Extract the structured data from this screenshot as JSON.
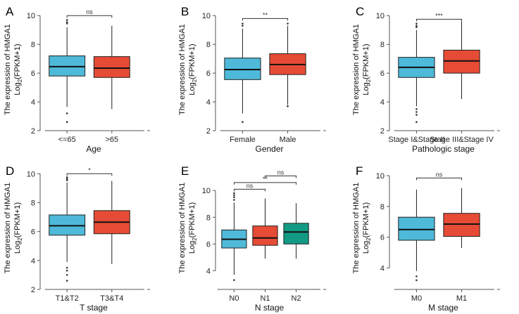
{
  "ylabel_line1": "The expression of HMGA1",
  "ylabel_line2_main": "Log",
  "ylabel_line2_sub": "2",
  "ylabel_line2_rest": "(FPKM+1)",
  "colors": {
    "blue": "#4EB9D8",
    "red": "#E64B35",
    "teal": "#139A84"
  },
  "chart_data": [
    {
      "type": "box",
      "panel_label": "A",
      "xlabel": "Age",
      "ylim": [
        2,
        10.5
      ],
      "yticks": [
        2,
        4,
        6,
        8,
        10
      ],
      "categories": [
        "<=65",
        ">65"
      ],
      "boxes": [
        {
          "color": "blue",
          "q1": 5.8,
          "median": 6.45,
          "q3": 7.2,
          "whisker_low": 3.65,
          "whisker_high": 9.2,
          "outliers": [
            9.45,
            9.55,
            9.7,
            3.2,
            2.6
          ]
        },
        {
          "color": "red",
          "q1": 5.7,
          "median": 6.35,
          "q3": 7.15,
          "whisker_low": 3.5,
          "whisker_high": 9.3,
          "outliers": []
        }
      ],
      "comparisons": [
        {
          "from": 0,
          "to": 1,
          "y": 10.0,
          "label": "ns"
        }
      ]
    },
    {
      "type": "box",
      "panel_label": "B",
      "xlabel": "Gender",
      "ylim": [
        2,
        10.5
      ],
      "yticks": [
        2,
        4,
        6,
        8,
        10
      ],
      "categories": [
        "Female",
        "Male"
      ],
      "boxes": [
        {
          "color": "blue",
          "q1": 5.55,
          "median": 6.25,
          "q3": 7.05,
          "whisker_low": 3.2,
          "whisker_high": 9.1,
          "outliers": [
            9.3,
            9.45,
            2.6
          ]
        },
        {
          "color": "red",
          "q1": 5.9,
          "median": 6.6,
          "q3": 7.35,
          "whisker_low": 3.8,
          "whisker_high": 9.3,
          "outliers": [
            9.45,
            3.7
          ]
        }
      ],
      "comparisons": [
        {
          "from": 0,
          "to": 1,
          "y": 9.8,
          "label": "**"
        }
      ]
    },
    {
      "type": "box",
      "panel_label": "C",
      "xlabel": "Pathologic stage",
      "ylim": [
        2,
        10.5
      ],
      "yticks": [
        2,
        4,
        6,
        8,
        10
      ],
      "categories": [
        "Stage I&Stage II",
        "Stage III&Stage IV"
      ],
      "boxes": [
        {
          "color": "blue",
          "q1": 5.7,
          "median": 6.4,
          "q3": 7.1,
          "whisker_low": 3.7,
          "whisker_high": 9.0,
          "outliers": [
            9.2,
            9.3,
            9.45,
            3.5,
            3.3,
            3.1,
            2.6
          ]
        },
        {
          "color": "red",
          "q1": 6.0,
          "median": 6.85,
          "q3": 7.6,
          "whisker_low": 4.2,
          "whisker_high": 9.6,
          "outliers": []
        }
      ],
      "comparisons": [
        {
          "from": 0,
          "to": 1,
          "y": 9.75,
          "label": "***"
        }
      ]
    },
    {
      "type": "box",
      "panel_label": "D",
      "xlabel": "T stage",
      "ylim": [
        2,
        10.5
      ],
      "yticks": [
        2,
        4,
        6,
        8,
        10
      ],
      "categories": [
        "T1&T2",
        "T3&T4"
      ],
      "boxes": [
        {
          "color": "blue",
          "q1": 5.75,
          "median": 6.4,
          "q3": 7.15,
          "whisker_low": 3.9,
          "whisker_high": 9.4,
          "outliers": [
            9.55,
            9.65,
            9.75,
            3.5,
            3.3,
            3.0,
            2.6
          ]
        },
        {
          "color": "red",
          "q1": 5.85,
          "median": 6.65,
          "q3": 7.45,
          "whisker_low": 3.75,
          "whisker_high": 9.5,
          "outliers": []
        }
      ],
      "comparisons": [
        {
          "from": 0,
          "to": 1,
          "y": 10.0,
          "label": "*"
        }
      ]
    },
    {
      "type": "box",
      "panel_label": "E",
      "xlabel": "N stage",
      "ylim": [
        2.6,
        11.8
      ],
      "yticks": [
        4,
        6,
        8,
        10
      ],
      "categories": [
        "N0",
        "N1",
        "N2"
      ],
      "boxes": [
        {
          "color": "blue",
          "q1": 5.7,
          "median": 6.35,
          "q3": 7.05,
          "whisker_low": 3.7,
          "whisker_high": 9.1,
          "outliers": [
            9.3,
            9.5,
            9.65,
            9.8,
            3.3
          ]
        },
        {
          "color": "red",
          "q1": 5.9,
          "median": 6.45,
          "q3": 7.35,
          "whisker_low": 4.9,
          "whisker_high": 9.4,
          "outliers": []
        },
        {
          "color": "teal",
          "q1": 6.0,
          "median": 6.9,
          "q3": 7.55,
          "whisker_low": 4.9,
          "whisker_high": 9.05,
          "outliers": []
        }
      ],
      "comparisons": [
        {
          "from": 0,
          "to": 1,
          "y": 10.1,
          "label": "ns"
        },
        {
          "from": 0,
          "to": 2,
          "y": 10.6,
          "label": "**"
        },
        {
          "from": 1,
          "to": 2,
          "y": 11.1,
          "label": "ns"
        }
      ]
    },
    {
      "type": "box",
      "panel_label": "F",
      "xlabel": "M stage",
      "ylim": [
        2.6,
        10.6
      ],
      "yticks": [
        4,
        6,
        8,
        10
      ],
      "categories": [
        "M0",
        "M1"
      ],
      "boxes": [
        {
          "color": "blue",
          "q1": 5.8,
          "median": 6.5,
          "q3": 7.3,
          "whisker_low": 3.8,
          "whisker_high": 9.1,
          "outliers": [
            3.45,
            3.2
          ]
        },
        {
          "color": "red",
          "q1": 6.05,
          "median": 6.85,
          "q3": 7.55,
          "whisker_low": 5.3,
          "whisker_high": 9.2,
          "outliers": []
        }
      ],
      "comparisons": [
        {
          "from": 0,
          "to": 1,
          "y": 9.85,
          "label": "ns"
        }
      ]
    }
  ]
}
